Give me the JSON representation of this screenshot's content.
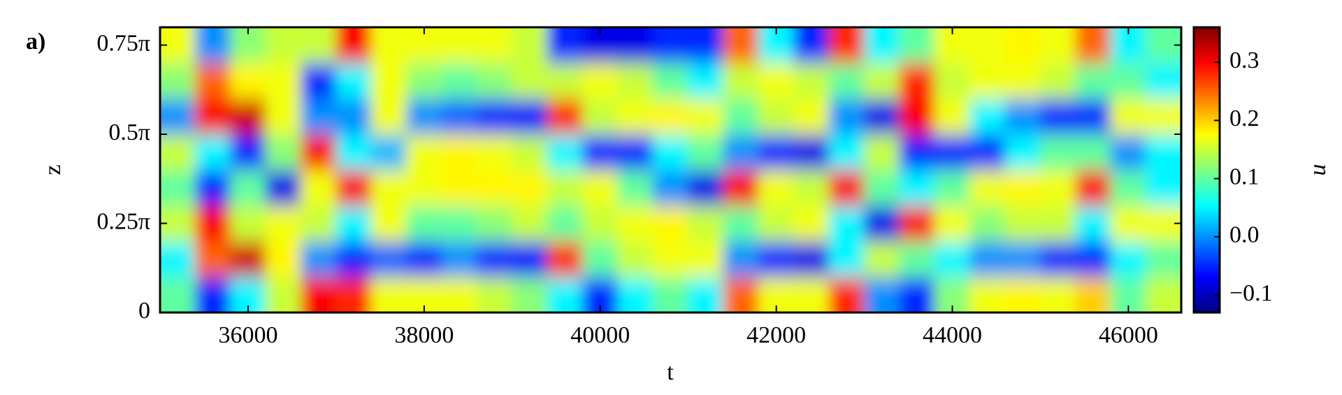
{
  "chart_data": {
    "type": "heatmap",
    "panel_label": "a)",
    "xlabel": "t",
    "ylabel": "z",
    "colorbar_label": "u",
    "colormap": "jet",
    "xlim": [
      35000,
      46600
    ],
    "ylim": [
      0,
      0.8
    ],
    "clim": [
      -0.13,
      0.36
    ],
    "xticks": [
      36000,
      38000,
      40000,
      42000,
      44000,
      46000
    ],
    "yticks": [
      0,
      {
        "value": 0.25,
        "label": "0.25π"
      },
      {
        "value": 0.5,
        "label": "0.5π"
      },
      {
        "value": 0.75,
        "label": "0.75π"
      }
    ],
    "cticks": [
      {
        "value": -0.1,
        "label": "−0.1"
      },
      {
        "value": 0,
        "label": "0.0"
      },
      0.1,
      0.2,
      0.3
    ],
    "x": [
      35200,
      35600,
      36000,
      36400,
      36800,
      37200,
      37600,
      38000,
      38400,
      38800,
      39200,
      39600,
      40000,
      40400,
      40800,
      41200,
      41600,
      42000,
      42400,
      42800,
      43200,
      43600,
      44000,
      44400,
      44800,
      45200,
      45600,
      46000,
      46400
    ],
    "y": [
      0.05,
      0.15,
      0.25,
      0.35,
      0.45,
      0.55,
      0.65,
      0.75
    ],
    "values": [
      [
        0.1,
        0.05,
        0.15,
        0.1,
        0.15,
        0.0,
        0.12,
        0.17
      ],
      [
        -0.05,
        0.25,
        0.3,
        -0.05,
        0.05,
        0.3,
        0.25,
        0.0
      ],
      [
        0.05,
        0.32,
        0.15,
        0.1,
        -0.05,
        0.32,
        0.18,
        0.12
      ],
      [
        0.15,
        0.18,
        0.17,
        -0.08,
        0.12,
        0.17,
        0.17,
        0.15
      ],
      [
        0.3,
        0.0,
        0.15,
        0.17,
        0.3,
        0.0,
        -0.05,
        0.15
      ],
      [
        0.28,
        -0.05,
        0.05,
        0.3,
        0.05,
        0.0,
        0.05,
        0.3
      ],
      [
        0.17,
        -0.02,
        0.17,
        0.17,
        0.02,
        0.17,
        0.17,
        0.17
      ],
      [
        0.17,
        -0.05,
        0.1,
        0.17,
        0.17,
        0.0,
        0.12,
        0.17
      ],
      [
        0.17,
        0.0,
        0.1,
        0.18,
        0.18,
        -0.02,
        0.1,
        0.17
      ],
      [
        0.15,
        -0.05,
        0.12,
        0.18,
        0.17,
        -0.05,
        0.12,
        0.17
      ],
      [
        0.12,
        -0.07,
        0.15,
        0.18,
        0.15,
        -0.07,
        0.15,
        0.15
      ],
      [
        0.05,
        0.28,
        0.1,
        0.15,
        0.05,
        0.28,
        0.15,
        -0.05
      ],
      [
        -0.05,
        0.1,
        0.15,
        0.17,
        -0.05,
        0.15,
        0.17,
        -0.08
      ],
      [
        0.05,
        0.15,
        0.17,
        0.1,
        -0.05,
        0.17,
        0.15,
        -0.08
      ],
      [
        0.1,
        0.17,
        0.18,
        0.0,
        0.05,
        0.18,
        0.1,
        -0.05
      ],
      [
        0.05,
        0.17,
        0.15,
        -0.08,
        0.1,
        0.17,
        0.05,
        -0.05
      ],
      [
        0.25,
        0.0,
        0.1,
        0.3,
        0.0,
        0.1,
        0.15,
        0.25
      ],
      [
        0.17,
        -0.05,
        0.15,
        0.17,
        -0.05,
        0.15,
        0.17,
        0.05
      ],
      [
        0.17,
        -0.08,
        0.17,
        0.15,
        -0.08,
        0.17,
        0.15,
        -0.05
      ],
      [
        0.28,
        0.05,
        0.05,
        0.3,
        0.05,
        0.0,
        0.1,
        0.28
      ],
      [
        0.0,
        0.15,
        -0.08,
        0.1,
        0.15,
        -0.08,
        0.15,
        0.05
      ],
      [
        -0.05,
        0.1,
        0.3,
        0.05,
        -0.05,
        0.3,
        0.28,
        0.1
      ],
      [
        0.12,
        0.05,
        0.17,
        0.1,
        -0.05,
        0.17,
        0.15,
        0.17
      ],
      [
        0.17,
        0.0,
        0.12,
        0.17,
        -0.05,
        0.05,
        0.17,
        0.17
      ],
      [
        0.18,
        0.0,
        0.15,
        0.18,
        0.05,
        0.0,
        0.17,
        0.18
      ],
      [
        0.17,
        -0.05,
        0.15,
        0.17,
        0.1,
        -0.05,
        0.15,
        0.17
      ],
      [
        0.2,
        -0.05,
        0.05,
        0.3,
        0.1,
        -0.05,
        0.1,
        0.25
      ],
      [
        0.1,
        0.05,
        0.17,
        0.1,
        0.0,
        0.17,
        0.1,
        0.05
      ],
      [
        0.15,
        0.1,
        0.17,
        0.05,
        0.05,
        0.17,
        0.05,
        0.1
      ]
    ]
  }
}
